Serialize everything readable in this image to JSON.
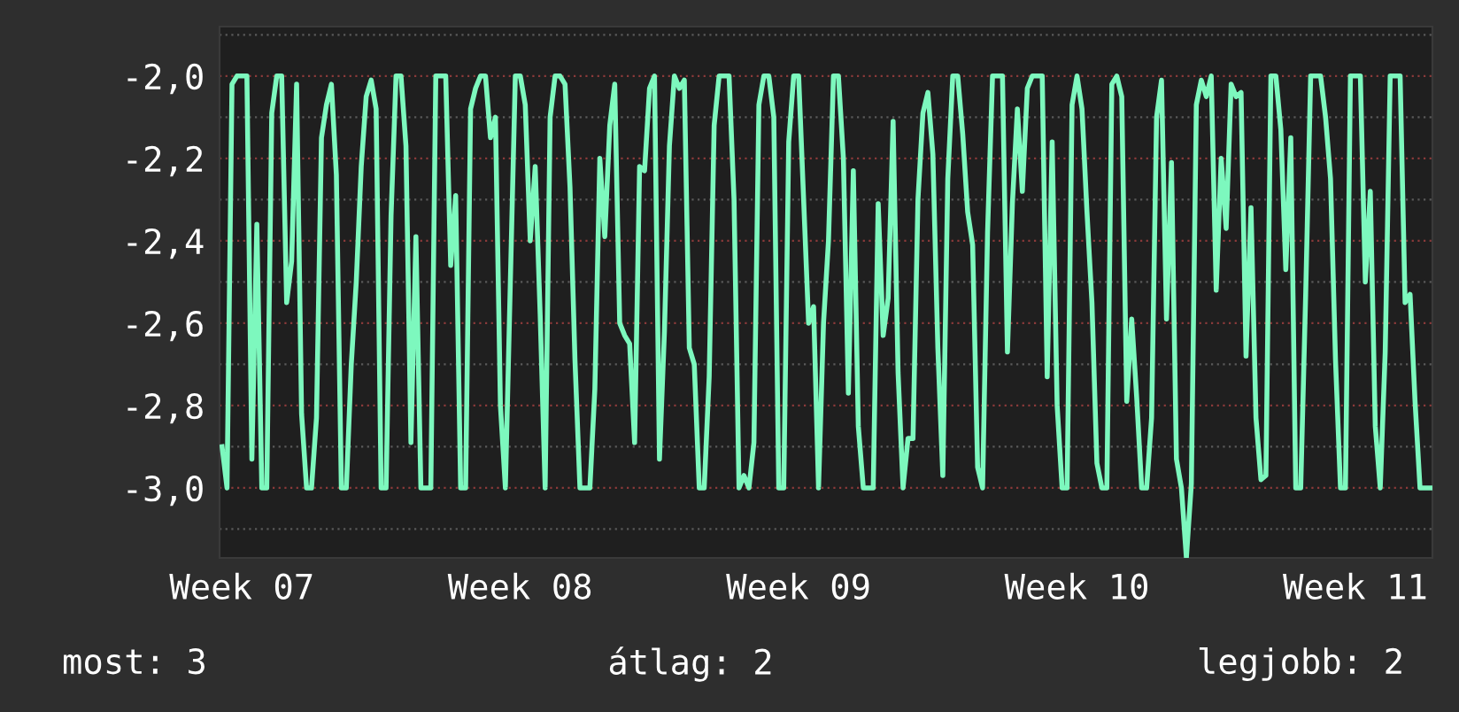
{
  "chart_data": {
    "type": "line",
    "categories": [
      null,
      null,
      null,
      null,
      "Week 07",
      null,
      null,
      null,
      null,
      null,
      null,
      null,
      null,
      null,
      null,
      null,
      null,
      null,
      null,
      null,
      null,
      null,
      null,
      null,
      null,
      null,
      null,
      null,
      null,
      null,
      null,
      null,
      null,
      null,
      null,
      null,
      null,
      null,
      null,
      null,
      null,
      null,
      null,
      null,
      null,
      null,
      null,
      null,
      null,
      null,
      null,
      null,
      null,
      null,
      null,
      null,
      null,
      null,
      null,
      null,
      "Week 08",
      null,
      null,
      null,
      null,
      null,
      null,
      null,
      null,
      null,
      null,
      null,
      null,
      null,
      null,
      null,
      null,
      null,
      null,
      null,
      null,
      null,
      null,
      null,
      null,
      null,
      null,
      null,
      null,
      null,
      null,
      null,
      null,
      null,
      null,
      null,
      null,
      null,
      null,
      null,
      null,
      null,
      null,
      null,
      null,
      null,
      null,
      null,
      null,
      null,
      null,
      null,
      null,
      null,
      null,
      null,
      "Week 09",
      null,
      null,
      null,
      null,
      null,
      null,
      null,
      null,
      null,
      null,
      null,
      null,
      null,
      null,
      null,
      null,
      null,
      null,
      null,
      null,
      null,
      null,
      null,
      null,
      null,
      null,
      null,
      null,
      null,
      null,
      null,
      null,
      null,
      null,
      null,
      null,
      null,
      null,
      null,
      null,
      null,
      null,
      null,
      null,
      null,
      null,
      null,
      null,
      null,
      null,
      null,
      null,
      null,
      null,
      null,
      "Week 10",
      null,
      null,
      null,
      null,
      null,
      null,
      null,
      null,
      null,
      null,
      null,
      null,
      null,
      null,
      null,
      null,
      null,
      null,
      null,
      null,
      null,
      null,
      null,
      null,
      null,
      null,
      null,
      null,
      null,
      null,
      null,
      null,
      null,
      null,
      null,
      null,
      null,
      null,
      null,
      null,
      null,
      null,
      null,
      null,
      null,
      null,
      null,
      null,
      null,
      null,
      null,
      null,
      null,
      null,
      null,
      "Week 11",
      null,
      null,
      null,
      null,
      null,
      null,
      null,
      null,
      null,
      null,
      null,
      null,
      null,
      null,
      null
    ],
    "series": [
      {
        "color": "#7df8be",
        "values": [
          -2.9,
          -3,
          -2.02,
          -2,
          -2,
          -2,
          -2.93,
          -2.36,
          -3,
          -3,
          -2.09,
          -2,
          -2,
          -2.55,
          -2.45,
          -2.02,
          -2.82,
          -3,
          -3,
          -2.83,
          -2.15,
          -2.07,
          -2.02,
          -2.24,
          -3,
          -3,
          -2.7,
          -2.5,
          -2.22,
          -2.05,
          -2.01,
          -2.08,
          -3,
          -3,
          -2.34,
          -2,
          -2,
          -2.17,
          -2.89,
          -2.39,
          -3,
          -3,
          -3,
          -2,
          -2,
          -2,
          -2.46,
          -2.29,
          -3,
          -3,
          -2.08,
          -2.03,
          -2,
          -2,
          -2.15,
          -2.1,
          -2.8,
          -3,
          -2.5,
          -2,
          -2,
          -2.07,
          -2.4,
          -2.22,
          -2.58,
          -3,
          -2.1,
          -2,
          -2,
          -2.02,
          -2.27,
          -2.69,
          -3,
          -3,
          -3,
          -2.76,
          -2.2,
          -2.39,
          -2.12,
          -2.02,
          -2.6,
          -2.63,
          -2.65,
          -2.89,
          -2.22,
          -2.23,
          -2.03,
          -2,
          -2.93,
          -2.62,
          -2.17,
          -2,
          -2.03,
          -2.01,
          -2.66,
          -2.7,
          -3,
          -3,
          -2.73,
          -2.12,
          -2,
          -2,
          -2,
          -2.3,
          -3,
          -2.97,
          -3,
          -2.89,
          -2.07,
          -2,
          -2,
          -2.1,
          -3,
          -3,
          -2.16,
          -2,
          -2,
          -2.3,
          -2.6,
          -2.56,
          -3,
          -2.6,
          -2.4,
          -2,
          -2,
          -2.2,
          -2.77,
          -2.23,
          -2.85,
          -3,
          -3,
          -3,
          -2.31,
          -2.63,
          -2.54,
          -2.11,
          -2.72,
          -3,
          -2.88,
          -2.88,
          -2.3,
          -2.09,
          -2.04,
          -2.19,
          -2.66,
          -2.97,
          -2.25,
          -2,
          -2,
          -2.14,
          -2.33,
          -2.41,
          -2.95,
          -3,
          -2.38,
          -2,
          -2,
          -2,
          -2.67,
          -2.31,
          -2.08,
          -2.28,
          -2.03,
          -2,
          -2,
          -2,
          -2.73,
          -2.16,
          -2.8,
          -3,
          -3,
          -2.07,
          -2,
          -2.08,
          -2.33,
          -2.55,
          -2.94,
          -3,
          -3,
          -2.02,
          -2,
          -2.05,
          -2.79,
          -2.59,
          -2.78,
          -3,
          -3,
          -2.83,
          -2.1,
          -2.01,
          -2.59,
          -2.21,
          -2.93,
          -3,
          -3.17,
          -2.99,
          -2.07,
          -2.01,
          -2.05,
          -2,
          -2.52,
          -2.2,
          -2.37,
          -2.02,
          -2.05,
          -2.04,
          -2.68,
          -2.32,
          -2.83,
          -2.98,
          -2.97,
          -2,
          -2,
          -2.13,
          -2.47,
          -2.15,
          -3,
          -3,
          -2.53,
          -2,
          -2,
          -2,
          -2.1,
          -2.25,
          -2.69,
          -3,
          -3,
          -2,
          -2,
          -2,
          -2.5,
          -2.28,
          -2.85,
          -3,
          -2.67,
          -2,
          -2,
          -2,
          -2.55,
          -2.53,
          -2.79,
          -3,
          -3,
          -3
        ]
      }
    ],
    "ylim": [
      -3.17,
      -1.88
    ],
    "yticks": [
      {
        "value": -1.9,
        "label": null
      },
      {
        "value": -2.0,
        "label": "-2,0"
      },
      {
        "value": -2.1,
        "label": null
      },
      {
        "value": -2.2,
        "label": "-2,2"
      },
      {
        "value": -2.3,
        "label": null
      },
      {
        "value": -2.4,
        "label": "-2,4"
      },
      {
        "value": -2.5,
        "label": null
      },
      {
        "value": -2.6,
        "label": "-2,6"
      },
      {
        "value": -2.7,
        "label": null
      },
      {
        "value": -2.8,
        "label": "-2,8"
      },
      {
        "value": -2.9,
        "label": null
      },
      {
        "value": -3.0,
        "label": "-3,0"
      },
      {
        "value": -3.1,
        "label": null
      }
    ],
    "grid": "y",
    "line_style": "solid",
    "annotations": [
      "most: 3",
      "átlag: 2",
      "legjobb: 2"
    ]
  }
}
